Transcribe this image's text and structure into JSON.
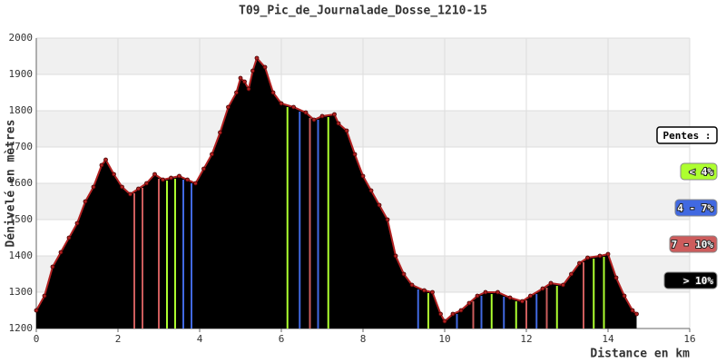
{
  "chart_data": {
    "type": "area",
    "title": "T09_Pic_de_Journalade_Dosse_1210-15",
    "xlabel": "Distance en km",
    "ylabel": "Dénivelé en mètres",
    "x": [
      0,
      0.2,
      0.4,
      0.6,
      0.8,
      1.0,
      1.2,
      1.4,
      1.6,
      1.7,
      1.9,
      2.1,
      2.3,
      2.5,
      2.7,
      2.9,
      3.1,
      3.3,
      3.5,
      3.7,
      3.9,
      4.1,
      4.3,
      4.5,
      4.7,
      4.9,
      5.0,
      5.1,
      5.2,
      5.3,
      5.4,
      5.6,
      5.8,
      6.0,
      6.3,
      6.6,
      6.8,
      7.0,
      7.3,
      7.4,
      7.6,
      7.8,
      8.0,
      8.2,
      8.4,
      8.6,
      8.8,
      9.0,
      9.2,
      9.5,
      9.7,
      9.9,
      10.0,
      10.2,
      10.4,
      10.6,
      10.8,
      11.0,
      11.3,
      11.6,
      11.9,
      12.1,
      12.4,
      12.6,
      12.9,
      13.1,
      13.3,
      13.5,
      13.8,
      14.0,
      14.2,
      14.4,
      14.6,
      14.7
    ],
    "values": [
      1250,
      1290,
      1370,
      1410,
      1450,
      1490,
      1550,
      1590,
      1650,
      1665,
      1625,
      1590,
      1570,
      1585,
      1600,
      1625,
      1610,
      1615,
      1620,
      1610,
      1600,
      1640,
      1680,
      1740,
      1810,
      1850,
      1890,
      1880,
      1860,
      1910,
      1945,
      1920,
      1850,
      1820,
      1810,
      1795,
      1775,
      1785,
      1790,
      1765,
      1745,
      1680,
      1620,
      1580,
      1540,
      1500,
      1400,
      1350,
      1320,
      1305,
      1300,
      1240,
      1220,
      1240,
      1250,
      1270,
      1290,
      1300,
      1300,
      1285,
      1275,
      1290,
      1310,
      1325,
      1320,
      1350,
      1380,
      1395,
      1400,
      1405,
      1340,
      1290,
      1250,
      1240
    ],
    "color": "#000000",
    "line_color": "#b22222",
    "xlim": [
      0,
      16
    ],
    "xticks": [
      0,
      2,
      4,
      6,
      8,
      10,
      12,
      14,
      16
    ],
    "ylim": [
      1200,
      2000
    ],
    "yticks": [
      1200,
      1300,
      1400,
      1500,
      1600,
      1700,
      1800,
      1900,
      2000
    ],
    "grid": true,
    "legend": {
      "title": "Pentes :",
      "position": "right",
      "items": [
        {
          "label": "< 4%",
          "color": "#adff2f",
          "max": 4
        },
        {
          "label": "4 - 7%",
          "color": "#4169e1",
          "max": 7
        },
        {
          "label": "7 - 10%",
          "color": "#cd5c5c",
          "max": 10
        },
        {
          "label": "> 10%",
          "color": "#000000"
        }
      ]
    }
  }
}
